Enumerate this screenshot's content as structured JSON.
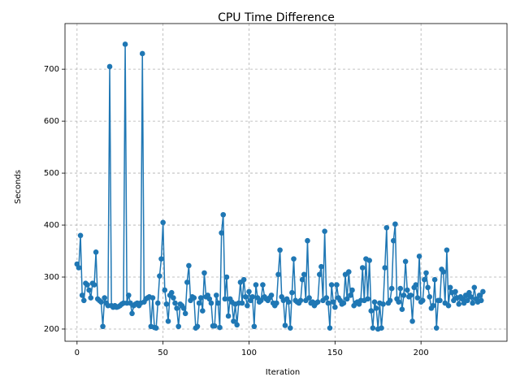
{
  "chart_data": {
    "type": "line",
    "title": "CPU Time Difference",
    "x_label": "Iteration",
    "y_label": "Seconds",
    "color": "#1f77b4",
    "grid": true,
    "marker": "o",
    "xlim": [
      -7,
      250
    ],
    "ylim": [
      176.5,
      787.8
    ],
    "xticks": [
      0,
      50,
      100,
      150,
      200
    ],
    "yticks": [
      200,
      300,
      400,
      500,
      600,
      700
    ],
    "values": [
      325,
      318,
      380,
      265,
      255,
      288,
      285,
      275,
      260,
      288,
      285,
      348,
      258,
      255,
      252,
      205,
      260,
      250,
      245,
      705,
      245,
      242,
      245,
      242,
      243,
      245,
      248,
      250,
      748,
      250,
      265,
      250,
      230,
      245,
      248,
      250,
      245,
      250,
      730,
      252,
      258,
      260,
      262,
      205,
      260,
      203,
      202,
      250,
      302,
      335,
      405,
      275,
      248,
      215,
      265,
      270,
      260,
      250,
      240,
      205,
      248,
      245,
      240,
      230,
      290,
      322,
      255,
      262,
      260,
      202,
      205,
      250,
      260,
      235,
      308,
      262,
      265,
      258,
      250,
      206,
      206,
      265,
      250,
      203,
      385,
      420,
      258,
      300,
      225,
      258,
      252,
      215,
      248,
      208,
      250,
      290,
      250,
      295,
      262,
      245,
      272,
      255,
      262,
      205,
      285,
      260,
      252,
      255,
      285,
      262,
      258,
      255,
      260,
      265,
      250,
      245,
      250,
      305,
      352,
      262,
      255,
      207,
      258,
      252,
      202,
      270,
      335,
      255,
      252,
      250,
      255,
      295,
      305,
      255,
      370,
      260,
      250,
      252,
      245,
      250,
      252,
      305,
      320,
      255,
      388,
      260,
      250,
      202,
      285,
      252,
      242,
      285,
      260,
      255,
      248,
      250,
      305,
      258,
      310,
      265,
      275,
      245,
      250,
      252,
      248,
      255,
      318,
      255,
      335,
      258,
      332,
      235,
      202,
      252,
      240,
      200,
      250,
      202,
      248,
      318,
      395,
      250,
      255,
      278,
      370,
      402,
      258,
      252,
      278,
      238,
      265,
      330,
      275,
      262,
      265,
      215,
      280,
      285,
      260,
      340,
      252,
      255,
      295,
      308,
      280,
      262,
      240,
      245,
      295,
      202,
      255,
      255,
      315,
      310,
      250,
      352,
      245,
      280,
      270,
      255,
      272,
      260,
      248,
      262,
      258,
      250,
      265,
      255,
      270,
      262,
      250,
      280,
      258,
      252,
      265,
      255,
      272
    ]
  }
}
